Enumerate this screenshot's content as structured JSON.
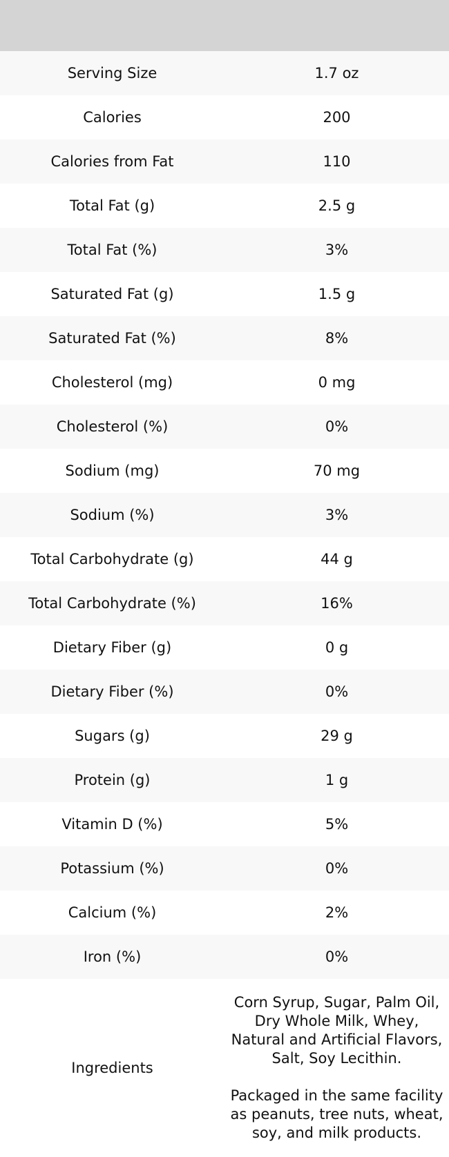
{
  "chart_data": {
    "type": "table",
    "header": {
      "labels": [
        "",
        ""
      ]
    },
    "rows": [
      {
        "label": "Serving Size",
        "value": "1.7 oz"
      },
      {
        "label": "Calories",
        "value": "200"
      },
      {
        "label": "Calories from Fat",
        "value": "110"
      },
      {
        "label": "Total Fat (g)",
        "value": "2.5 g"
      },
      {
        "label": "Total Fat (%)",
        "value": "3%"
      },
      {
        "label": "Saturated Fat (g)",
        "value": "1.5 g"
      },
      {
        "label": "Saturated Fat (%)",
        "value": "8%"
      },
      {
        "label": "Cholesterol (mg)",
        "value": "0 mg"
      },
      {
        "label": "Cholesterol (%)",
        "value": "0%"
      },
      {
        "label": "Sodium (mg)",
        "value": "70 mg"
      },
      {
        "label": "Sodium (%)",
        "value": "3%"
      },
      {
        "label": "Total Carbohydrate (g)",
        "value": "44 g"
      },
      {
        "label": "Total Carbohydrate (%)",
        "value": "16%"
      },
      {
        "label": "Dietary Fiber (g)",
        "value": "0 g"
      },
      {
        "label": "Dietary Fiber (%)",
        "value": "0%"
      },
      {
        "label": "Sugars (g)",
        "value": "29 g"
      },
      {
        "label": "Protein (g)",
        "value": "1 g"
      },
      {
        "label": "Vitamin D (%)",
        "value": "5%"
      },
      {
        "label": "Potassium (%)",
        "value": "0%"
      },
      {
        "label": "Calcium (%)",
        "value": "2%"
      },
      {
        "label": "Iron (%)",
        "value": "0%"
      }
    ],
    "ingredients": {
      "label": "Ingredients",
      "paragraphs": [
        "Corn Syrup, Sugar, Palm Oil, Dry Whole Milk, Whey, Natural and Artificial Flavors, Salt, Soy Lecithin.",
        "Packaged in the same facility as peanuts, tree nuts, wheat, soy, and milk products."
      ]
    },
    "layout": {
      "stripe_pattern": "odd rows shaded starting with first data row",
      "grid": false,
      "columns_align": "center"
    },
    "style": {
      "header_bg": "#d4d4d4",
      "stripe_bg": "#f8f8f8",
      "row_bg": "#ffffff",
      "text_color": "#111111"
    }
  }
}
